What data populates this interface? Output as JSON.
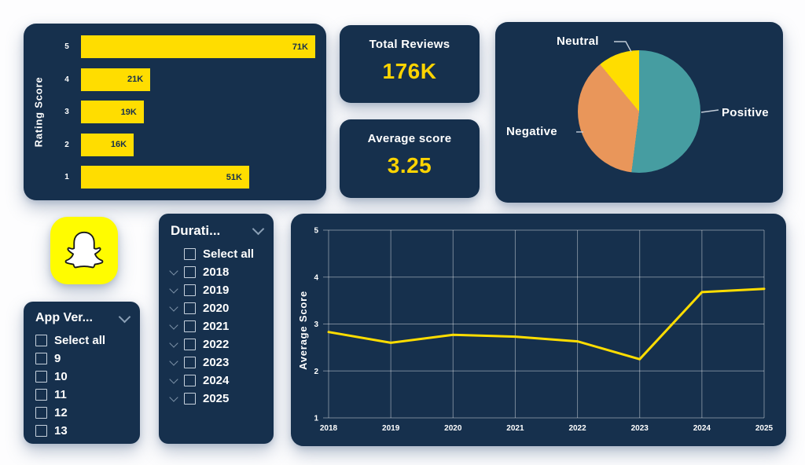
{
  "colors": {
    "card_bg": "#16304d",
    "bar_yellow": "#ffdd00",
    "kpi_yellow": "#ffd400",
    "pie_teal": "#469da1",
    "pie_orange": "#e9965a",
    "pie_yellow": "#ffdd00",
    "snapchat_yellow": "#fffc00",
    "text_white": "#ffffff",
    "gridline": "rgba(255,255,255,0.45)"
  },
  "icons": {
    "slicer_header": "chevron-down-icon",
    "slicer_item_expand": "chevron-down-icon",
    "checkbox": "empty-checkbox",
    "logo": "snapchat-ghost-icon"
  },
  "kpi_cards": {
    "total_reviews": {
      "title": "Total Reviews",
      "value": "176K"
    },
    "average_score": {
      "title": "Average score",
      "value": "3.25"
    }
  },
  "app_version_slicer": {
    "title": "App Ver...",
    "items": [
      "Select all",
      "9",
      "10",
      "11",
      "12",
      "13"
    ]
  },
  "duration_slicer": {
    "title": "Durati...",
    "items": [
      "Select all",
      "2018",
      "2019",
      "2020",
      "2021",
      "2022",
      "2023",
      "2024",
      "2025"
    ]
  },
  "chart_data": [
    {
      "type": "bar",
      "orientation": "horizontal",
      "ylabel": "Rating Score",
      "categories": [
        "5",
        "4",
        "3",
        "2",
        "1"
      ],
      "values": [
        71000,
        21000,
        19000,
        16000,
        51000
      ],
      "value_labels": [
        "71K",
        "21K",
        "19K",
        "16K",
        "51K"
      ],
      "bar_color": "#ffdd00",
      "grid": false
    },
    {
      "type": "pie",
      "labels": [
        "Positive",
        "Negative",
        "Neutral"
      ],
      "values": [
        52,
        37,
        11
      ],
      "values_note": "percent, estimated from arc angles (no data labels shown)",
      "colors": [
        "#469da1",
        "#e9965a",
        "#ffdd00"
      ],
      "legend": "callout labels with leader lines",
      "start_angle_deg": 0,
      "direction": "clockwise"
    },
    {
      "type": "line",
      "ylabel": "Average Score",
      "x": [
        "2018",
        "2019",
        "2020",
        "2021",
        "2022",
        "2023",
        "2024",
        "2025"
      ],
      "values": [
        2.83,
        2.6,
        2.77,
        2.73,
        2.63,
        2.25,
        3.68,
        3.75
      ],
      "ylim": [
        1,
        5
      ],
      "yticks": [
        1,
        2,
        3,
        4,
        5
      ],
      "line_color": "#ffdd00",
      "grid": true,
      "legend_position": "none"
    }
  ]
}
